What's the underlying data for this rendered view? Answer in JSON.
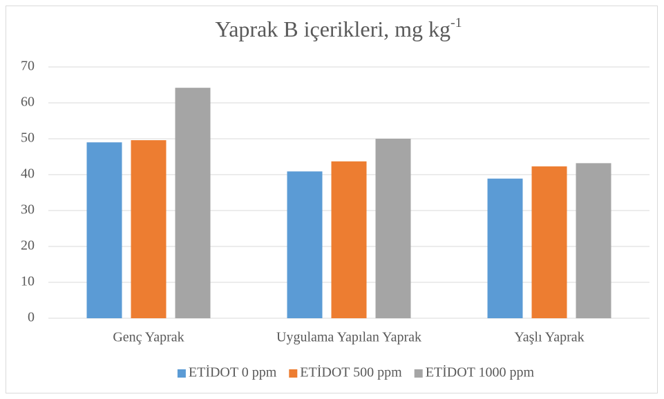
{
  "chart_data": {
    "type": "bar",
    "title": "Yaprak B içerikleri, mg kg",
    "title_superscript": "-1",
    "categories": [
      "Genç Yaprak",
      "Uygulama Yapılan Yaprak",
      "Yaşlı Yaprak"
    ],
    "series": [
      {
        "name": "ETİDOT 0 ppm",
        "color": "#5b9bd5",
        "values": [
          49,
          40.9,
          38.9
        ]
      },
      {
        "name": "ETİDOT 500 ppm",
        "color": "#ed7d31",
        "values": [
          49.6,
          43.7,
          42.3
        ]
      },
      {
        "name": "ETİDOT 1000 ppm",
        "color": "#a5a5a5",
        "values": [
          64.2,
          50,
          43.2
        ]
      }
    ],
    "ylim": [
      0,
      70
    ],
    "yticks": [
      0,
      10,
      20,
      30,
      40,
      50,
      60,
      70
    ],
    "grid": true,
    "legend": "bottom"
  }
}
